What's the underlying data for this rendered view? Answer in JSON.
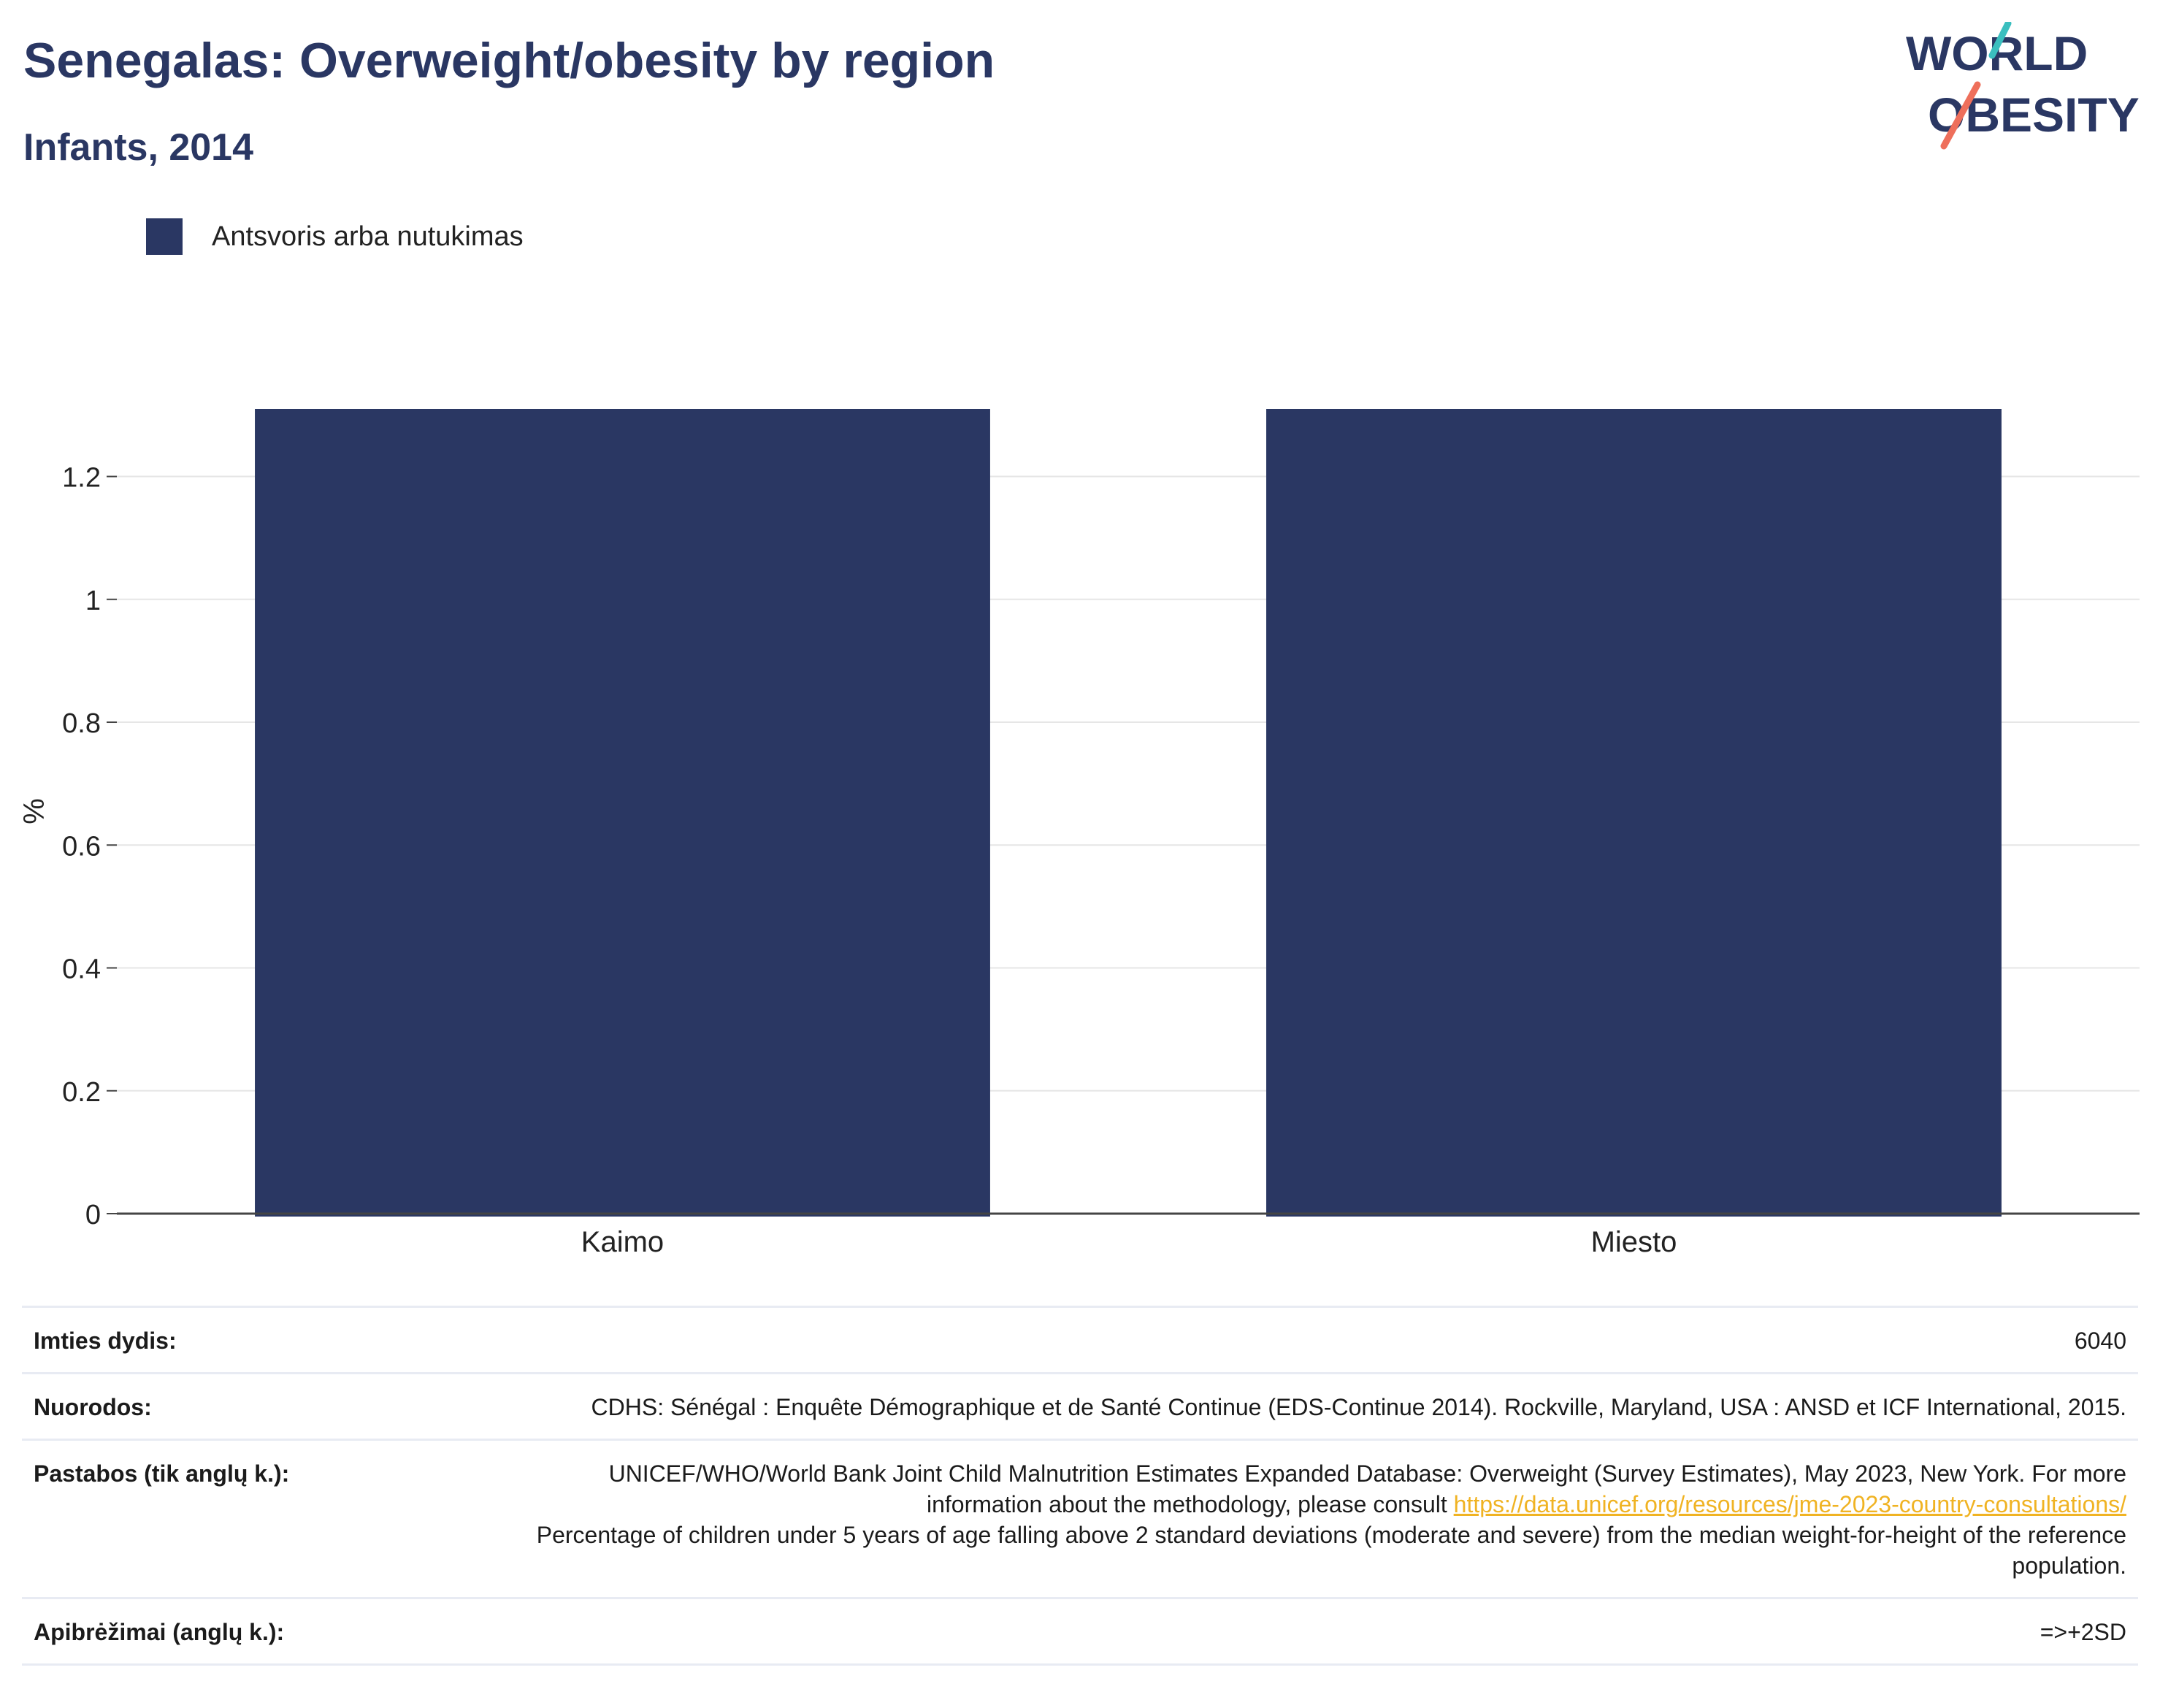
{
  "header": {
    "title": "Senegalas: Overweight/obesity by region",
    "subtitle": "Infants, 2014"
  },
  "logo": {
    "line1": "WORLD",
    "line2": "OBESITY",
    "colors": {
      "teal": "#3bbfbf",
      "coral": "#ee6f5b",
      "navy": "#2a3763"
    }
  },
  "legend": {
    "items": [
      {
        "label": "Antsvoris arba nutukimas",
        "color": "#2a3763"
      }
    ]
  },
  "chart_data": {
    "type": "bar",
    "categories": [
      "Kaimo",
      "Miesto"
    ],
    "series": [
      {
        "name": "Antsvoris arba nutukimas",
        "values": [
          1.31,
          1.31
        ],
        "color": "#2a3763"
      }
    ],
    "ylabel": "%",
    "ylim": [
      0,
      1.31
    ],
    "yticks": [
      0,
      0.2,
      0.4,
      0.6,
      0.8,
      1,
      1.2
    ],
    "ytick_labels": [
      "0",
      "0.2",
      "0.4",
      "0.6",
      "0.8",
      "1",
      "1.2"
    ],
    "grid": true,
    "legend_position": "top-left"
  },
  "info": {
    "sample_label": "Imties dydis:",
    "sample_value": "6040",
    "refs_label": "Nuorodos:",
    "refs_value": "CDHS: Sénégal : Enquête Démographique et de Santé Continue (EDS-Continue 2014). Rockville, Maryland, USA : ANSD et ICF International, 2015.",
    "notes_label": "Pastabos (tik anglų k.):",
    "notes_text1": "UNICEF/WHO/World Bank Joint Child Malnutrition Estimates Expanded Database: Overweight (Survey Estimates), May 2023, New York. For more information about the methodology, please consult",
    "notes_link": "https://data.unicef.org/resources/jme-2023-country-consultations/",
    "notes_text2": "Percentage of children under 5 years of age falling above 2 standard deviations (moderate and severe) from the median weight-for-height of the reference population.",
    "defs_label": "Apibrėžimai (anglų k.):",
    "defs_value": "=>+2SD"
  }
}
